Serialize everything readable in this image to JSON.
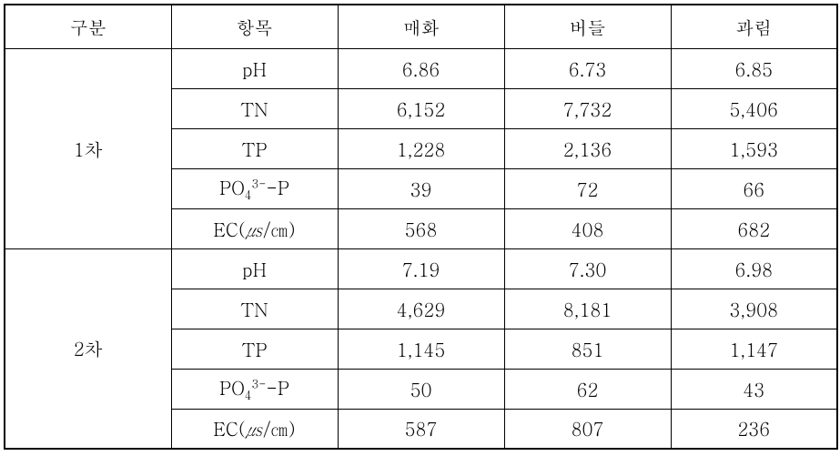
{
  "type": "table",
  "background_color": "#ffffff",
  "border_color": "#000000",
  "text_color": "#000000",
  "font_size_pt": 15,
  "header": {
    "gubun": "구분",
    "item": "항목",
    "c1": "매화",
    "c2": "버들",
    "c3": "과림"
  },
  "groups": [
    {
      "label": "1차",
      "rows": [
        {
          "item_plain": "pH",
          "v1": "6.86",
          "v2": "6.73",
          "v3": "6.85"
        },
        {
          "item_plain": "TN",
          "v1": "6,152",
          "v2": "7,732",
          "v3": "5,406"
        },
        {
          "item_plain": "TP",
          "v1": "1,228",
          "v2": "2,136",
          "v3": "1,593"
        },
        {
          "item_html": "PO<sub>4</sub><sup>3-</sup>-P",
          "v1": "39",
          "v2": "72",
          "v3": "66"
        },
        {
          "item_html": "EC(<span class=\"unit-i\">㎲</span>/㎝)",
          "v1": "568",
          "v2": "408",
          "v3": "682"
        }
      ]
    },
    {
      "label": "2차",
      "rows": [
        {
          "item_plain": "pH",
          "v1": "7.19",
          "v2": "7.30",
          "v3": "6.98"
        },
        {
          "item_plain": "TN",
          "v1": "4,629",
          "v2": "8,181",
          "v3": "3,908"
        },
        {
          "item_plain": "TP",
          "v1": "1,145",
          "v2": "851",
          "v3": "1,147"
        },
        {
          "item_html": "PO<sub>4</sub><sup>3-</sup>-P",
          "v1": "50",
          "v2": "62",
          "v3": "43"
        },
        {
          "item_html": "EC(<span class=\"unit-i\">㎲</span>/㎝)",
          "v1": "587",
          "v2": "807",
          "v3": "236"
        }
      ]
    }
  ]
}
